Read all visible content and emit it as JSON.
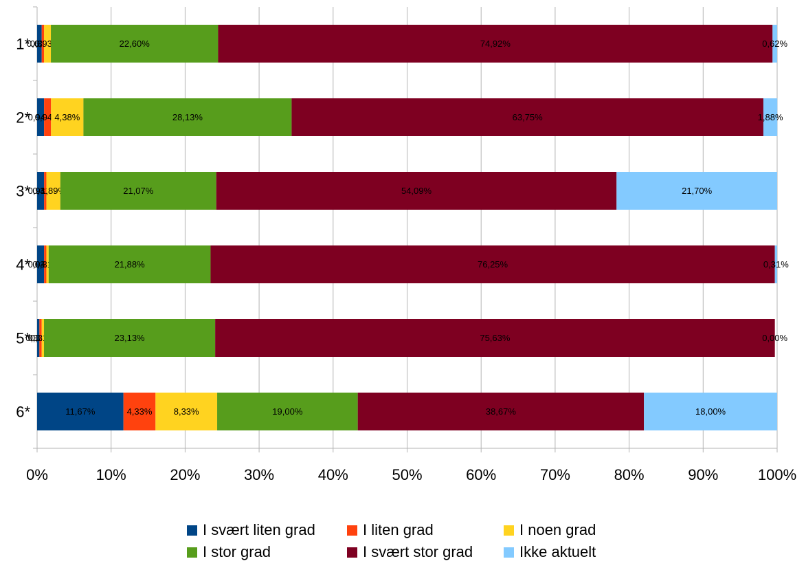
{
  "chart_data": {
    "type": "bar",
    "orientation": "horizontal",
    "stacked": "percent",
    "categories": [
      "1*",
      "2*",
      "3*",
      "4*",
      "5*",
      "6*"
    ],
    "x_ticks": [
      "0%",
      "10%",
      "20%",
      "30%",
      "40%",
      "50%",
      "60%",
      "70%",
      "80%",
      "90%",
      "100%"
    ],
    "xlim": [
      0,
      100
    ],
    "grid": true,
    "legend_position": "bottom",
    "series": [
      {
        "name": "I svært liten grad",
        "color": "#004586",
        "values": [
          0.62,
          0.94,
          0.94,
          0.94,
          0.31,
          11.67
        ],
        "labels": [
          "0,62%",
          "0,94%",
          "0,94%",
          "0,94%",
          "0,31%",
          "11,67%"
        ]
      },
      {
        "name": "I liten grad",
        "color": "#ff420e",
        "values": [
          0.31,
          0.94,
          0.31,
          0.31,
          0.31,
          4.33
        ],
        "labels": [
          "0,31%",
          "0,94%",
          "0,31%",
          "0,31%",
          "0,31%",
          "4,33%"
        ]
      },
      {
        "name": "I noen grad",
        "color": "#ffd320",
        "values": [
          0.93,
          4.38,
          1.89,
          0.31,
          0.31,
          8.33
        ],
        "labels": [
          "0,93%",
          "4,38%",
          "1,89%",
          "0,31%",
          "0,31%",
          "8,33%"
        ]
      },
      {
        "name": "I stor grad",
        "color": "#579d1c",
        "values": [
          22.6,
          28.13,
          21.07,
          21.88,
          23.13,
          19.0
        ],
        "labels": [
          "22,60%",
          "28,13%",
          "21,07%",
          "21,88%",
          "23,13%",
          "19,00%"
        ]
      },
      {
        "name": "I svært stor grad",
        "color": "#7e0021",
        "values": [
          74.92,
          63.75,
          54.09,
          76.25,
          75.63,
          38.67
        ],
        "labels": [
          "74,92%",
          "63,75%",
          "54,09%",
          "76,25%",
          "75,63%",
          "38,67%"
        ]
      },
      {
        "name": "Ikke aktuelt",
        "color": "#83caff",
        "values": [
          0.62,
          1.88,
          21.7,
          0.31,
          0.0,
          18.0
        ],
        "labels": [
          "0,62%",
          "1,88%",
          "21,70%",
          "0,31%",
          "0,00%",
          "18,00%"
        ]
      }
    ]
  }
}
